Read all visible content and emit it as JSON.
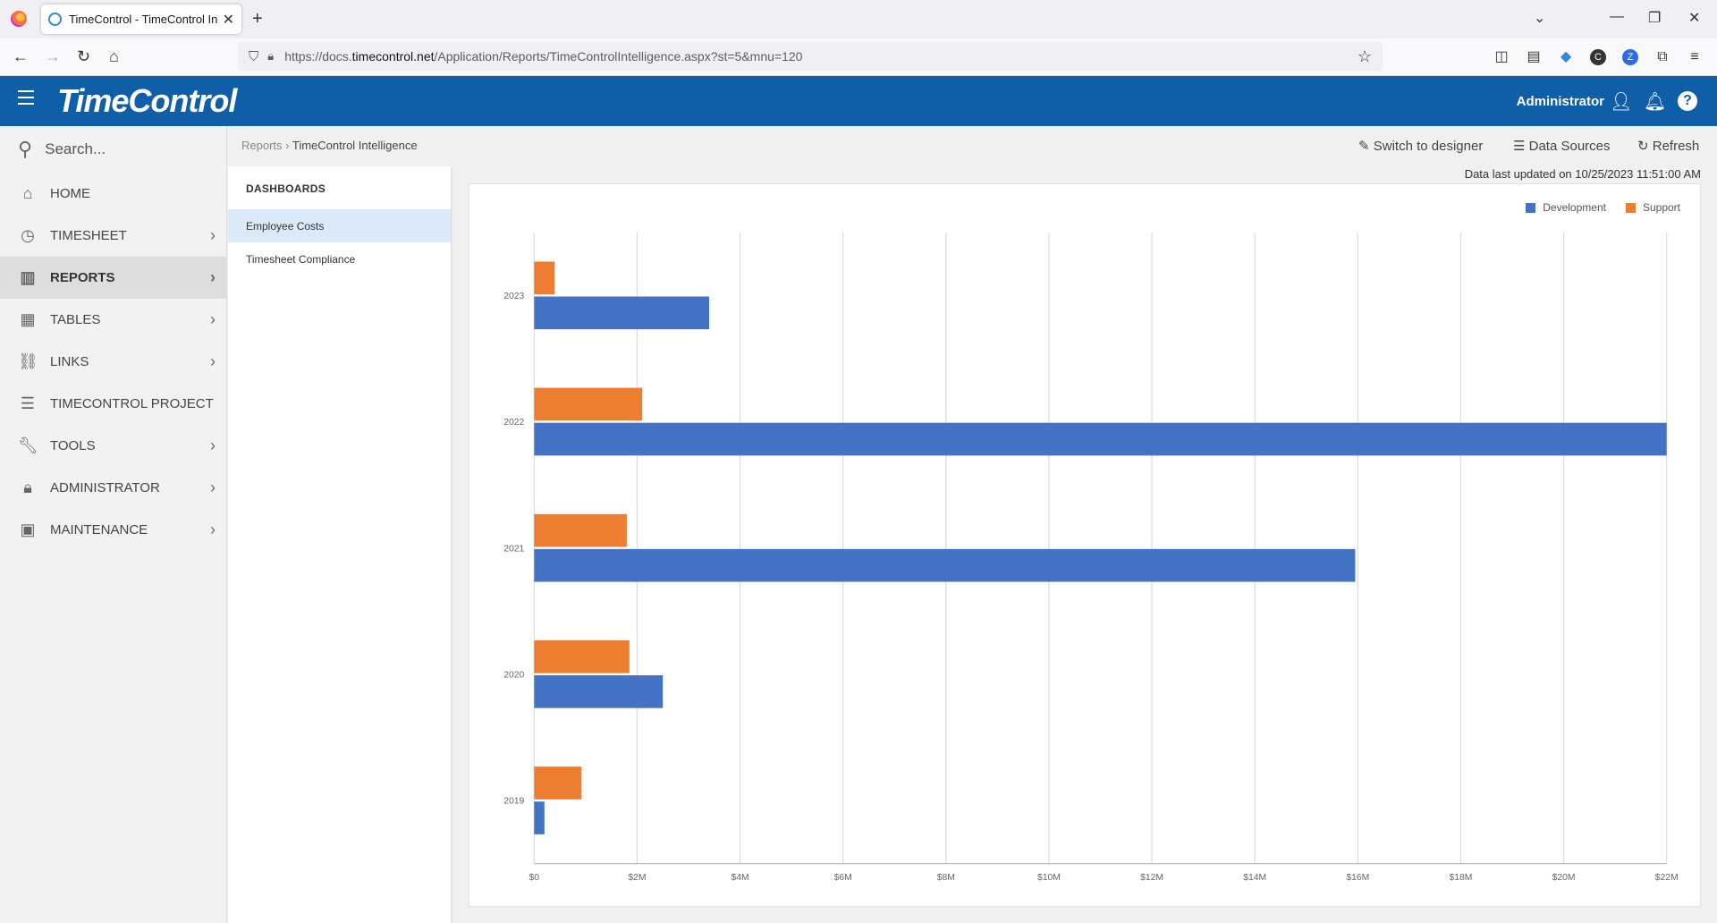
{
  "browser": {
    "tab_title": "TimeControl - TimeControl Intelligence",
    "url_prefix": "https://docs.",
    "url_domain": "timecontrol.net",
    "url_path": "/Application/Reports/TimeControlIntelligence.aspx?st=5&mnu=120"
  },
  "app": {
    "brand": "TimeControl",
    "user": "Administrator"
  },
  "sidebar": {
    "search_placeholder": "Search...",
    "items": [
      {
        "label": "HOME",
        "icon": "home-icon",
        "has_children": false
      },
      {
        "label": "TIMESHEET",
        "icon": "clock-icon",
        "has_children": true
      },
      {
        "label": "REPORTS",
        "icon": "bar-chart-icon",
        "has_children": true,
        "active": true
      },
      {
        "label": "TABLES",
        "icon": "table-icon",
        "has_children": true
      },
      {
        "label": "LINKS",
        "icon": "link-icon",
        "has_children": true
      },
      {
        "label": "TIMECONTROL PROJECT",
        "icon": "task-list-icon",
        "has_children": false
      },
      {
        "label": "TOOLS",
        "icon": "wrench-icon",
        "has_children": true
      },
      {
        "label": "ADMINISTRATOR",
        "icon": "lock-icon",
        "has_children": true
      },
      {
        "label": "MAINTENANCE",
        "icon": "clipboard-check-icon",
        "has_children": true
      }
    ]
  },
  "breadcrumb": {
    "root": "Reports",
    "current": "TimeControl Intelligence"
  },
  "toolbar": {
    "switch_label": "Switch to designer",
    "datasources_label": "Data Sources",
    "refresh_label": "Refresh"
  },
  "updated_text": "Data last updated on 10/25/2023 11:51:00 AM",
  "dashboards": {
    "heading": "DASHBOARDS",
    "items": [
      "Employee Costs",
      "Timesheet Compliance"
    ]
  },
  "chart_data": {
    "type": "bar",
    "orientation": "horizontal",
    "categories": [
      "2023",
      "2022",
      "2021",
      "2020",
      "2019"
    ],
    "series": [
      {
        "name": "Development",
        "color": "#4472c4",
        "values": [
          3.4,
          22.0,
          15.95,
          2.5,
          0.2
        ]
      },
      {
        "name": "Support",
        "color": "#ed7d31",
        "values": [
          0.4,
          2.1,
          1.8,
          1.85,
          0.92
        ]
      }
    ],
    "xlim": [
      0,
      22
    ],
    "x_ticks": [
      "$0",
      "$2M",
      "$4M",
      "$6M",
      "$8M",
      "$10M",
      "$12M",
      "$14M",
      "$16M",
      "$18M",
      "$20M",
      "$22M"
    ],
    "grid": true,
    "legend": "top-right"
  }
}
